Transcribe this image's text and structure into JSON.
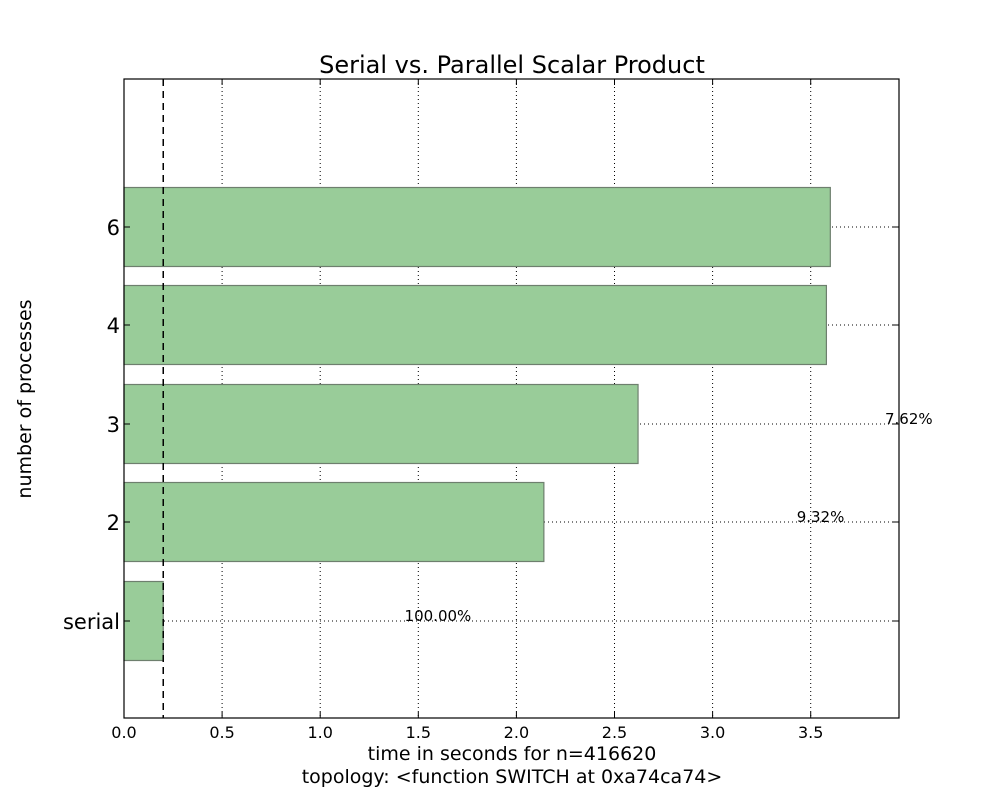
{
  "chart_data": {
    "type": "bar",
    "orientation": "horizontal",
    "title": "Serial vs. Parallel Scalar Product",
    "xlabel": "time in seconds for n=416620",
    "xlabel2": "topology: <function SWITCH at 0xa74ca74>",
    "ylabel": "number of processes",
    "categories": [
      "serial",
      "2",
      "3",
      "4",
      "6"
    ],
    "values": [
      0.2,
      2.14,
      2.62,
      3.58,
      3.6
    ],
    "data_labels": [
      {
        "category": "serial",
        "text": "100.00%",
        "x": 1.6
      },
      {
        "category": "2",
        "text": "9.32%",
        "x": 3.55
      },
      {
        "category": "3",
        "text": "7.62%",
        "x": 4.0
      }
    ],
    "reference_line": {
      "x": 0.2,
      "style": "dashed"
    },
    "xlim": [
      0,
      3.95
    ],
    "xticks": [
      "0.0",
      "0.5",
      "1.0",
      "1.5",
      "2.0",
      "2.5",
      "3.0",
      "3.5"
    ],
    "grid": true,
    "bar_color": "#99cc99",
    "bar_edge_color": "#6e7f6e"
  }
}
